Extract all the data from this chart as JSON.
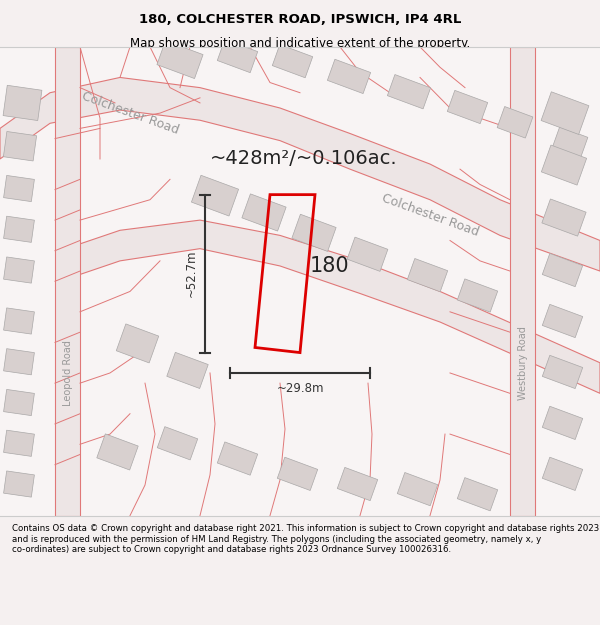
{
  "title": "180, COLCHESTER ROAD, IPSWICH, IP4 4RL",
  "subtitle": "Map shows position and indicative extent of the property.",
  "footer": "Contains OS data © Crown copyright and database right 2021. This information is subject to Crown copyright and database rights 2023 and is reproduced with the permission of HM Land Registry. The polygons (including the associated geometry, namely x, y co-ordinates) are subject to Crown copyright and database rights 2023 Ordnance Survey 100026316.",
  "area_label": "~428m²/~0.106ac.",
  "number_label": "180",
  "dim_height": "~52.7m",
  "dim_width": "~29.8m",
  "road_label_1": "Colchester Road",
  "road_label_2": "Colchester Road",
  "road_label_3": "Leopold Road",
  "road_label_4": "Westbury Road",
  "bg_color": "#f5f0f0",
  "map_bg": "#ffffff",
  "road_fill": "#e8e0e0",
  "building_fill": "#d8d0d0",
  "road_stroke": "#e07070",
  "property_stroke": "#dd0000",
  "dim_color": "#333333",
  "title_color": "#000000",
  "footer_color": "#000000",
  "label_color": "#888888"
}
